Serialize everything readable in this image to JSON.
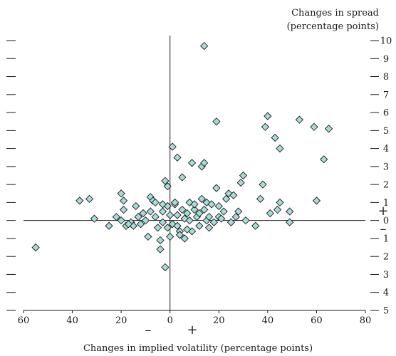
{
  "chart_data": {
    "type": "scatter",
    "title": "",
    "ylabel_line1": "Changes in spread",
    "ylabel_line2": "(percentage points)",
    "xlabel": "Changes in implied volatility (percentage points)",
    "xlim": [
      -60,
      80
    ],
    "ylim": [
      -5,
      10
    ],
    "x_tick_values": [
      -60,
      -40,
      -20,
      0,
      20,
      40,
      60,
      80
    ],
    "x_tick_labels": [
      "60",
      "40",
      "20",
      "0",
      "20",
      "40",
      "60",
      "80"
    ],
    "y_tick_values": [
      -5,
      -4,
      -3,
      -2,
      -1,
      0,
      1,
      2,
      3,
      4,
      5,
      6,
      7,
      8,
      9,
      10
    ],
    "y_tick_labels": [
      "5",
      "4",
      "3",
      "2",
      "1",
      "0",
      "1",
      "2",
      "3",
      "4",
      "5",
      "6",
      "7",
      "8",
      "9",
      "10"
    ],
    "x_sign_negative": "–",
    "x_sign_positive": "+",
    "y_sign_positive": "+",
    "y_sign_negative": "–",
    "marker_fill": "#a8dcd8",
    "marker_stroke": "#1a1a1a",
    "marker": "diamond",
    "grid": false,
    "points": [
      [
        -55,
        -1.5
      ],
      [
        -37,
        1.1
      ],
      [
        -33,
        1.2
      ],
      [
        -31,
        0.1
      ],
      [
        -25,
        -0.3
      ],
      [
        -20,
        1.5
      ],
      [
        -19,
        0.6
      ],
      [
        -19,
        1.1
      ],
      [
        -20,
        0.0
      ],
      [
        -18,
        -0.3
      ],
      [
        -16,
        -0.1
      ],
      [
        -15,
        -0.3
      ],
      [
        -13,
        0.2
      ],
      [
        -12,
        -0.2
      ],
      [
        -11,
        0.4
      ],
      [
        -10,
        0.0
      ],
      [
        -9,
        -0.9
      ],
      [
        -8,
        1.3
      ],
      [
        -7,
        1.1
      ],
      [
        -6,
        0.2
      ],
      [
        -5,
        -0.4
      ],
      [
        -4,
        -1.1
      ],
      [
        -3,
        0.5
      ],
      [
        -3,
        -0.1
      ],
      [
        -2,
        2.2
      ],
      [
        -1,
        1.9
      ],
      [
        -1,
        0.8
      ],
      [
        0,
        0.3
      ],
      [
        1,
        -0.2
      ],
      [
        1,
        4.1
      ],
      [
        2,
        0.9
      ],
      [
        3,
        3.5
      ],
      [
        3,
        0.3
      ],
      [
        4,
        -0.6
      ],
      [
        4,
        -0.8
      ],
      [
        5,
        2.4
      ],
      [
        5,
        0.6
      ],
      [
        6,
        0.1
      ],
      [
        7,
        0.4
      ],
      [
        8,
        1.0
      ],
      [
        9,
        3.2
      ],
      [
        9,
        -0.6
      ],
      [
        10,
        0.6
      ],
      [
        11,
        0.2
      ],
      [
        12,
        -0.3
      ],
      [
        13,
        3.0
      ],
      [
        13,
        1.2
      ],
      [
        14,
        3.2
      ],
      [
        14,
        0.6
      ],
      [
        14,
        9.7
      ],
      [
        15,
        1.0
      ],
      [
        15,
        0.0
      ],
      [
        16,
        0.2
      ],
      [
        17,
        0.9
      ],
      [
        18,
        -0.1
      ],
      [
        19,
        5.5
      ],
      [
        19,
        1.8
      ],
      [
        20,
        0.2
      ],
      [
        21,
        0.1
      ],
      [
        22,
        0.5
      ],
      [
        23,
        1.2
      ],
      [
        24,
        1.5
      ],
      [
        25,
        -0.1
      ],
      [
        26,
        1.4
      ],
      [
        27,
        0.2
      ],
      [
        28,
        0.5
      ],
      [
        29,
        2.1
      ],
      [
        30,
        2.5
      ],
      [
        31,
        0.0
      ],
      [
        35,
        -0.3
      ],
      [
        37,
        1.2
      ],
      [
        38,
        2.0
      ],
      [
        39,
        5.2
      ],
      [
        40,
        5.8
      ],
      [
        41,
        0.4
      ],
      [
        43,
        4.6
      ],
      [
        44,
        0.6
      ],
      [
        45,
        4.0
      ],
      [
        45,
        1.0
      ],
      [
        49,
        0.5
      ],
      [
        49,
        -0.1
      ],
      [
        53,
        5.6
      ],
      [
        59,
        5.2
      ],
      [
        60,
        1.1
      ],
      [
        63,
        3.4
      ],
      [
        65,
        5.1
      ],
      [
        -2,
        -2.6
      ],
      [
        -4,
        -1.6
      ],
      [
        0,
        -0.9
      ],
      [
        6,
        -1.0
      ],
      [
        -14,
        0.8
      ],
      [
        -8,
        0.5
      ],
      [
        -6,
        1.0
      ],
      [
        2,
        1.0
      ],
      [
        10,
        0.9
      ],
      [
        16,
        -0.4
      ],
      [
        -17,
        -0.2
      ],
      [
        -22,
        0.2
      ],
      [
        -1,
        -0.4
      ],
      [
        3,
        -0.3
      ],
      [
        8,
        0.0
      ],
      [
        12,
        0.4
      ],
      [
        20,
        0.8
      ],
      [
        -3,
        0.9
      ],
      [
        7,
        -0.5
      ]
    ]
  }
}
